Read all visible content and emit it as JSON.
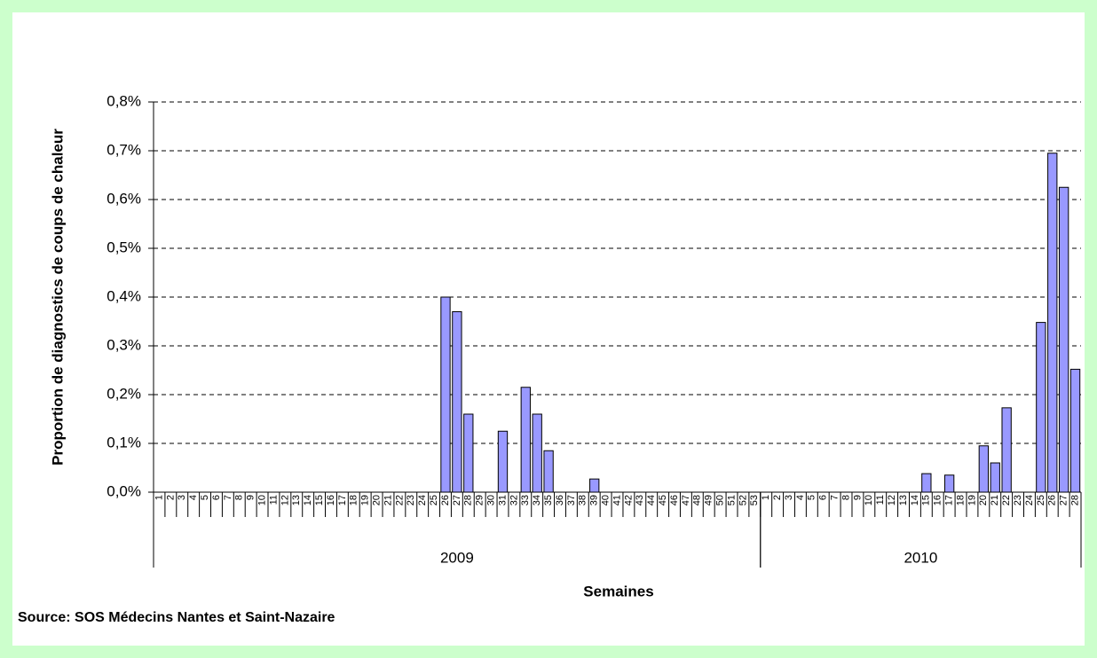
{
  "chart_data": {
    "type": "bar",
    "y_axis_label": "Proportion de diagnostics de coups de chaleur",
    "x_axis_label": "Semaines",
    "source": "Source: SOS Médecins Nantes et Saint-Nazaire",
    "categories": [
      "1",
      "2",
      "3",
      "4",
      "5",
      "6",
      "7",
      "8",
      "9",
      "10",
      "11",
      "12",
      "13",
      "14",
      "15",
      "16",
      "17",
      "18",
      "19",
      "20",
      "21",
      "22",
      "23",
      "24",
      "25",
      "26",
      "27",
      "28",
      "29",
      "30",
      "31",
      "32",
      "33",
      "34",
      "35",
      "36",
      "37",
      "38",
      "39",
      "40",
      "41",
      "42",
      "43",
      "44",
      "45",
      "46",
      "47",
      "48",
      "49",
      "50",
      "51",
      "52",
      "53",
      "1",
      "2",
      "3",
      "4",
      "5",
      "6",
      "7",
      "8",
      "9",
      "10",
      "11",
      "12",
      "13",
      "14",
      "15",
      "16",
      "17",
      "18",
      "19",
      "20",
      "21",
      "22",
      "23",
      "24",
      "25",
      "26",
      "27",
      "28"
    ],
    "groups": [
      {
        "name": "2009",
        "span": 53
      },
      {
        "name": "2010",
        "span": 28
      }
    ],
    "values": [
      0,
      0,
      0,
      0,
      0,
      0,
      0,
      0,
      0,
      0,
      0,
      0,
      0,
      0,
      0,
      0,
      0,
      0,
      0,
      0,
      0,
      0,
      0,
      0,
      0,
      0.4,
      0.37,
      0.16,
      0,
      0,
      0.125,
      0,
      0.215,
      0.16,
      0.085,
      0,
      0,
      0,
      0.027,
      0,
      0,
      0,
      0,
      0,
      0,
      0,
      0,
      0,
      0,
      0,
      0,
      0,
      0,
      0,
      0,
      0,
      0,
      0,
      0,
      0,
      0,
      0,
      0,
      0,
      0,
      0,
      0,
      0.038,
      0,
      0.035,
      0,
      0,
      0.095,
      0.06,
      0.173,
      0,
      0,
      0.348,
      0.695,
      0.625,
      0.252
    ],
    "color": "#9999ff",
    "ylim": [
      0,
      0.8
    ],
    "yticks": [
      {
        "value": 0,
        "label": "0,0%"
      },
      {
        "value": 0.1,
        "label": "0,1%"
      },
      {
        "value": 0.2,
        "label": "0,2%"
      },
      {
        "value": 0.3,
        "label": "0,3%"
      },
      {
        "value": 0.4,
        "label": "0,4%"
      },
      {
        "value": 0.5,
        "label": "0,5%"
      },
      {
        "value": 0.6,
        "label": "0,6%"
      },
      {
        "value": 0.7,
        "label": "0,7%"
      },
      {
        "value": 0.8,
        "label": "0,8%"
      }
    ],
    "grid": true
  }
}
